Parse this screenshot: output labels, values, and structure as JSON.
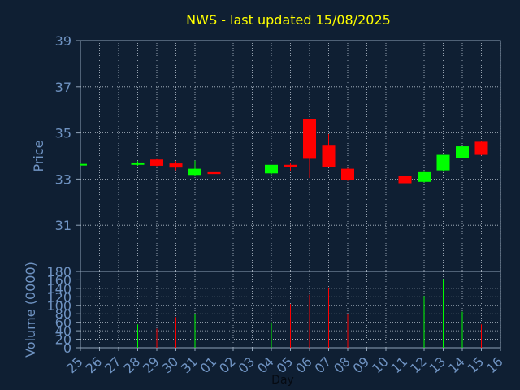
{
  "chart_data": [
    {
      "type": "candlestick",
      "title": "NWS - last updated 15/08/2025",
      "ylabel": "Price",
      "xlabel": "",
      "ylim": [
        29,
        39
      ],
      "yticks": [
        31,
        33,
        35,
        37,
        39
      ],
      "grid": true,
      "categories": [
        "25",
        "26",
        "27",
        "28",
        "29",
        "30",
        "31",
        "01",
        "02",
        "03",
        "04",
        "05",
        "06",
        "07",
        "08",
        "09",
        "10",
        "11",
        "12",
        "13",
        "14",
        "15",
        "16"
      ],
      "series": [
        {
          "values": [
            {
              "day": "25",
              "open": 33.62,
              "high": 33.68,
              "low": 33.58,
              "close": 33.66
            },
            {
              "day": "28",
              "open": 33.62,
              "high": 33.78,
              "low": 33.58,
              "close": 33.72
            },
            {
              "day": "29",
              "open": 33.85,
              "high": 33.87,
              "low": 33.55,
              "close": 33.58
            },
            {
              "day": "30",
              "open": 33.68,
              "high": 33.78,
              "low": 33.38,
              "close": 33.5
            },
            {
              "day": "31",
              "open": 33.18,
              "high": 33.8,
              "low": 33.12,
              "close": 33.45
            },
            {
              "day": "01",
              "open": 33.3,
              "high": 33.55,
              "low": 32.4,
              "close": 33.22
            },
            {
              "day": "04",
              "open": 33.25,
              "high": 33.58,
              "low": 33.2,
              "close": 33.62
            },
            {
              "day": "05",
              "open": 33.62,
              "high": 33.72,
              "low": 33.35,
              "close": 33.52
            },
            {
              "day": "06",
              "open": 35.6,
              "high": 35.6,
              "low": 33.05,
              "close": 33.88
            },
            {
              "day": "07",
              "open": 34.45,
              "high": 34.95,
              "low": 33.52,
              "close": 33.52
            },
            {
              "day": "08",
              "open": 33.45,
              "high": 33.48,
              "low": 32.92,
              "close": 32.95
            },
            {
              "day": "11",
              "open": 33.12,
              "high": 33.45,
              "low": 32.75,
              "close": 32.82
            },
            {
              "day": "12",
              "open": 32.88,
              "high": 33.32,
              "low": 32.85,
              "close": 33.3
            },
            {
              "day": "13",
              "open": 33.38,
              "high": 34.05,
              "low": 33.32,
              "close": 34.05
            },
            {
              "day": "14",
              "open": 33.92,
              "high": 34.42,
              "low": 33.9,
              "close": 34.42
            },
            {
              "day": "15",
              "open": 34.62,
              "high": 34.64,
              "low": 34.02,
              "close": 34.05
            }
          ]
        }
      ]
    },
    {
      "type": "bar",
      "ylabel": "Volume (0000)",
      "xlabel": "Day",
      "ylim": [
        0,
        180
      ],
      "yticks": [
        0,
        20,
        40,
        60,
        80,
        100,
        120,
        140,
        160,
        180
      ],
      "grid": true,
      "categories": [
        "25",
        "26",
        "27",
        "28",
        "29",
        "30",
        "31",
        "01",
        "02",
        "03",
        "04",
        "05",
        "06",
        "07",
        "08",
        "09",
        "10",
        "11",
        "12",
        "13",
        "14",
        "15",
        "16"
      ],
      "values": [
        {
          "day": "28",
          "value": 55,
          "direction": "up"
        },
        {
          "day": "29",
          "value": 45,
          "direction": "down"
        },
        {
          "day": "30",
          "value": 72,
          "direction": "down"
        },
        {
          "day": "31",
          "value": 80,
          "direction": "up"
        },
        {
          "day": "01",
          "value": 55,
          "direction": "down"
        },
        {
          "day": "04",
          "value": 60,
          "direction": "up"
        },
        {
          "day": "05",
          "value": 103,
          "direction": "down"
        },
        {
          "day": "06",
          "value": 125,
          "direction": "down"
        },
        {
          "day": "07",
          "value": 142,
          "direction": "down"
        },
        {
          "day": "08",
          "value": 80,
          "direction": "down"
        },
        {
          "day": "11",
          "value": 97,
          "direction": "down"
        },
        {
          "day": "12",
          "value": 122,
          "direction": "up"
        },
        {
          "day": "13",
          "value": 162,
          "direction": "up"
        },
        {
          "day": "14",
          "value": 85,
          "direction": "up"
        },
        {
          "day": "15",
          "value": 55,
          "direction": "down"
        }
      ]
    }
  ],
  "colors": {
    "background": "#0f1f33",
    "title": "#ffff00",
    "axis_text": "#6f93c2",
    "axis_line": "#8fa3b8",
    "grid": "#b8c4d0",
    "up": "#00ff00",
    "down": "#ff0000"
  }
}
